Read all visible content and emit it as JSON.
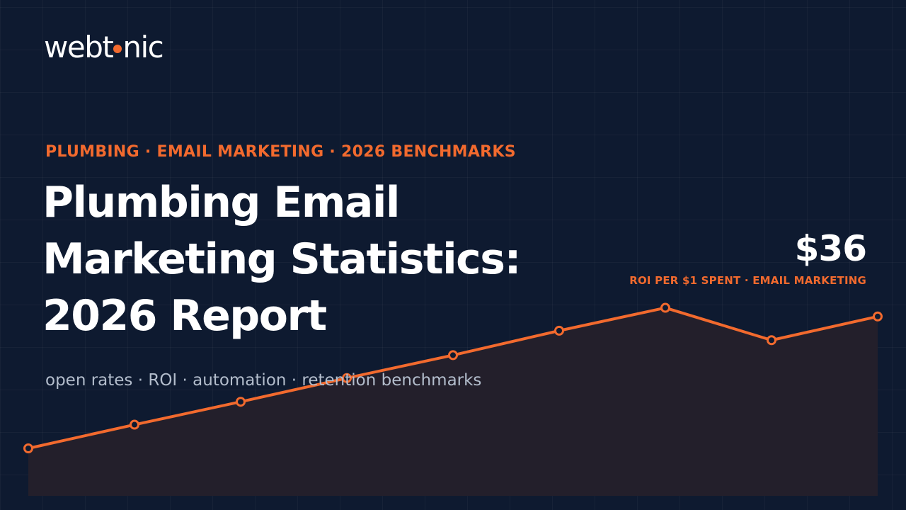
{
  "brand": {
    "logo_before": "webt",
    "logo_after": "nic",
    "accent_color": "#f26a2e"
  },
  "hero": {
    "kicker": "PLUMBING · EMAIL MARKETING · 2026 BENCHMARKS",
    "title_line1": "Plumbing Email",
    "title_line2": "Marketing Statistics:",
    "title_line3": "2026 Report",
    "subtitle": "open rates · ROI · automation · retention benchmarks"
  },
  "stat": {
    "value": "$36",
    "label": "ROI PER $1 SPENT · EMAIL MARKETING"
  },
  "chart_data": {
    "type": "area",
    "values": [
      0.0,
      0.15,
      0.295,
      0.445,
      0.59,
      0.745,
      0.89,
      0.685,
      0.835
    ],
    "line_color": "#f26a2e",
    "fill_color": "#231f2b"
  }
}
